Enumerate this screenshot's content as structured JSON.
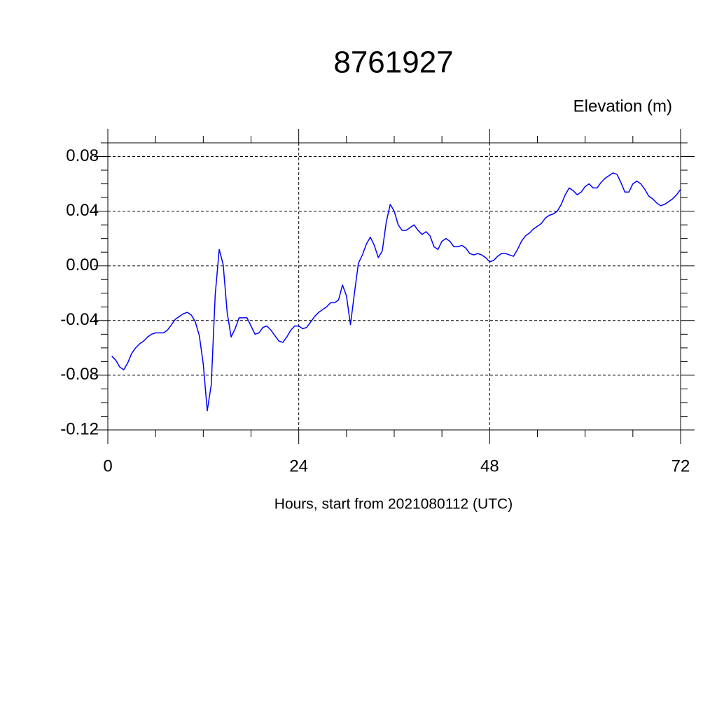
{
  "chart_data": {
    "type": "line",
    "title": "8761927",
    "y_label": "Elevation (m)",
    "x_label": "Hours, start from 2021080112 (UTC)",
    "xlim": [
      0,
      72
    ],
    "ylim": [
      -0.12,
      0.09
    ],
    "xticks": [
      0,
      24,
      48,
      72
    ],
    "xminorticks": [
      6,
      12,
      18,
      30,
      36,
      42,
      54,
      60,
      66
    ],
    "yticks": [
      -0.12,
      -0.08,
      -0.04,
      {
        "value": 0,
        "label": "0.00"
      },
      0.04,
      0.08
    ],
    "yminorticks": [
      -0.11,
      -0.1,
      -0.09,
      -0.07,
      -0.06,
      -0.05,
      -0.03,
      -0.02,
      -0.01,
      0.01,
      0.02,
      0.03,
      0.05,
      0.06,
      0.07,
      0.09
    ],
    "grid": true,
    "x": [
      0.5,
      1,
      1.5,
      2,
      2.5,
      3,
      3.5,
      4,
      4.5,
      5,
      5.5,
      6,
      6.5,
      7,
      7.5,
      8,
      8.5,
      9,
      9.5,
      10,
      10.5,
      11,
      11.5,
      12,
      12.5,
      13,
      13.5,
      14,
      14.5,
      15,
      15.5,
      16,
      16.5,
      17,
      17.5,
      18,
      18.5,
      19,
      19.5,
      20,
      20.5,
      21,
      21.5,
      22,
      22.5,
      23,
      23.5,
      24,
      24.5,
      25,
      25.5,
      26,
      26.5,
      27,
      27.5,
      28,
      28.5,
      29,
      29.5,
      30,
      30.5,
      31,
      31.5,
      32,
      32.5,
      33,
      33.5,
      34,
      34.5,
      35,
      35.5,
      36,
      36.5,
      37,
      37.5,
      38,
      38.5,
      39,
      39.5,
      40,
      40.5,
      41,
      41.5,
      42,
      42.5,
      43,
      43.5,
      44,
      44.5,
      45,
      45.5,
      46,
      46.5,
      47,
      47.5,
      48,
      48.5,
      49,
      49.5,
      50,
      50.5,
      51,
      51.5,
      52,
      52.5,
      53,
      53.5,
      54,
      54.5,
      55,
      55.5,
      56,
      56.5,
      57,
      57.5,
      58,
      58.5,
      59,
      59.5,
      60,
      60.5,
      61,
      61.5,
      62,
      62.5,
      63,
      63.5,
      64,
      64.5,
      65,
      65.5,
      66,
      66.5,
      67,
      67.5,
      68,
      68.5,
      69,
      69.5,
      70,
      70.5,
      71,
      71.5,
      72
    ],
    "series": [
      {
        "color": "#0000ff",
        "values": [
          -0.066,
          -0.069,
          -0.074,
          -0.076,
          -0.071,
          -0.064,
          -0.06,
          -0.057,
          -0.055,
          -0.052,
          -0.05,
          -0.049,
          -0.049,
          -0.049,
          -0.047,
          -0.043,
          -0.039,
          -0.037,
          -0.035,
          -0.034,
          -0.036,
          -0.041,
          -0.051,
          -0.072,
          -0.106,
          -0.087,
          -0.021,
          0.012,
          0.001,
          -0.034,
          -0.052,
          -0.046,
          -0.038,
          -0.038,
          -0.038,
          -0.044,
          -0.05,
          -0.049,
          -0.045,
          -0.044,
          -0.047,
          -0.051,
          -0.055,
          -0.056,
          -0.052,
          -0.047,
          -0.044,
          -0.044,
          -0.046,
          -0.045,
          -0.041,
          -0.037,
          -0.034,
          -0.032,
          -0.03,
          -0.027,
          -0.027,
          -0.025,
          -0.014,
          -0.022,
          -0.043,
          -0.02,
          0.002,
          0.008,
          0.016,
          0.021,
          0.015,
          0.006,
          0.011,
          0.032,
          0.045,
          0.04,
          0.03,
          0.026,
          0.026,
          0.028,
          0.03,
          0.026,
          0.023,
          0.025,
          0.022,
          0.014,
          0.012,
          0.018,
          0.02,
          0.018,
          0.014,
          0.014,
          0.015,
          0.013,
          0.009,
          0.008,
          0.009,
          0.008,
          0.006,
          0.003,
          0.004,
          0.007,
          0.009,
          0.009,
          0.008,
          0.007,
          0.012,
          0.018,
          0.022,
          0.024,
          0.027,
          0.029,
          0.031,
          0.035,
          0.037,
          0.038,
          0.04,
          0.045,
          0.052,
          0.057,
          0.055,
          0.052,
          0.054,
          0.058,
          0.06,
          0.057,
          0.057,
          0.061,
          0.064,
          0.066,
          0.068,
          0.067,
          0.061,
          0.054,
          0.054,
          0.06,
          0.062,
          0.06,
          0.056,
          0.051,
          0.049,
          0.046,
          0.044,
          0.045,
          0.047,
          0.049,
          0.052,
          0.056
        ]
      }
    ]
  }
}
